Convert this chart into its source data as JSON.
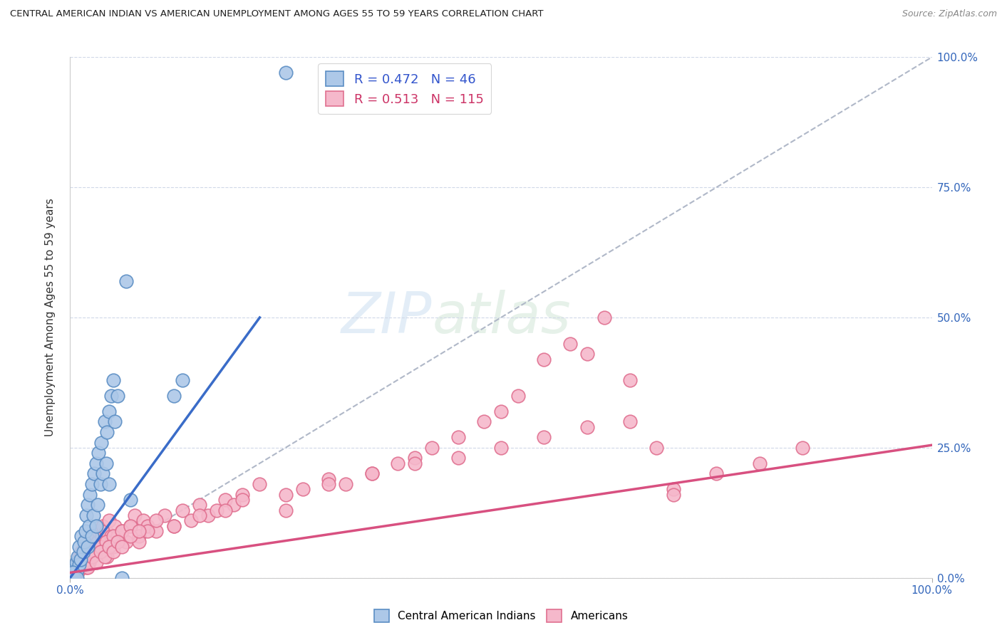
{
  "title": "CENTRAL AMERICAN INDIAN VS AMERICAN UNEMPLOYMENT AMONG AGES 55 TO 59 YEARS CORRELATION CHART",
  "source": "Source: ZipAtlas.com",
  "ylabel": "Unemployment Among Ages 55 to 59 years",
  "xlim": [
    0,
    1.0
  ],
  "ylim": [
    0,
    1.0
  ],
  "ytick_labels": [
    "0.0%",
    "25.0%",
    "50.0%",
    "75.0%",
    "100.0%"
  ],
  "ytick_vals": [
    0,
    0.25,
    0.5,
    0.75,
    1.0
  ],
  "blue_R": 0.472,
  "blue_N": 46,
  "pink_R": 0.513,
  "pink_N": 115,
  "blue_color": "#adc8e8",
  "pink_color": "#f5b8cb",
  "blue_edge": "#5b8ec4",
  "pink_edge": "#e07090",
  "blue_line_color": "#3a6cc8",
  "pink_line_color": "#d85080",
  "blue_label": "Central American Indians",
  "pink_label": "Americans",
  "watermark": "ZIPatlas",
  "background_color": "#ffffff",
  "blue_line_x": [
    0.0,
    0.22
  ],
  "blue_line_y": [
    0.0,
    0.5
  ],
  "pink_line_x": [
    0.0,
    1.0
  ],
  "pink_line_y": [
    0.01,
    0.255
  ],
  "blue_scatter_x": [
    0.004,
    0.006,
    0.007,
    0.008,
    0.009,
    0.01,
    0.01,
    0.012,
    0.013,
    0.015,
    0.016,
    0.018,
    0.019,
    0.02,
    0.02,
    0.022,
    0.023,
    0.025,
    0.025,
    0.027,
    0.028,
    0.03,
    0.03,
    0.032,
    0.033,
    0.035,
    0.036,
    0.038,
    0.04,
    0.042,
    0.043,
    0.045,
    0.045,
    0.048,
    0.05,
    0.052,
    0.055,
    0.06,
    0.065,
    0.07,
    0.12,
    0.13,
    0.25,
    0.003,
    0.005,
    0.008
  ],
  "blue_scatter_y": [
    0.02,
    0.01,
    0.03,
    0.015,
    0.04,
    0.025,
    0.06,
    0.035,
    0.08,
    0.05,
    0.07,
    0.09,
    0.12,
    0.06,
    0.14,
    0.1,
    0.16,
    0.08,
    0.18,
    0.12,
    0.2,
    0.1,
    0.22,
    0.14,
    0.24,
    0.18,
    0.26,
    0.2,
    0.3,
    0.22,
    0.28,
    0.32,
    0.18,
    0.35,
    0.38,
    0.3,
    0.35,
    0.0,
    0.57,
    0.15,
    0.35,
    0.38,
    0.97,
    0.01,
    0.0,
    0.0
  ],
  "pink_scatter_x": [
    0.003,
    0.005,
    0.007,
    0.008,
    0.009,
    0.01,
    0.012,
    0.013,
    0.015,
    0.016,
    0.018,
    0.019,
    0.02,
    0.022,
    0.023,
    0.025,
    0.027,
    0.028,
    0.03,
    0.032,
    0.033,
    0.035,
    0.037,
    0.038,
    0.04,
    0.042,
    0.043,
    0.045,
    0.048,
    0.05,
    0.052,
    0.055,
    0.06,
    0.065,
    0.07,
    0.075,
    0.08,
    0.085,
    0.09,
    0.1,
    0.11,
    0.12,
    0.13,
    0.14,
    0.15,
    0.16,
    0.17,
    0.18,
    0.19,
    0.2,
    0.22,
    0.25,
    0.27,
    0.3,
    0.32,
    0.35,
    0.38,
    0.4,
    0.42,
    0.45,
    0.48,
    0.5,
    0.52,
    0.55,
    0.58,
    0.6,
    0.62,
    0.65,
    0.68,
    0.7,
    0.008,
    0.012,
    0.018,
    0.022,
    0.028,
    0.035,
    0.042,
    0.05,
    0.06,
    0.07,
    0.08,
    0.09,
    0.1,
    0.12,
    0.15,
    0.18,
    0.2,
    0.25,
    0.3,
    0.35,
    0.4,
    0.45,
    0.5,
    0.55,
    0.6,
    0.65,
    0.7,
    0.75,
    0.8,
    0.85,
    0.0,
    0.005,
    0.01,
    0.015,
    0.02,
    0.025,
    0.03,
    0.035,
    0.04,
    0.045,
    0.05,
    0.055,
    0.06,
    0.07,
    0.08
  ],
  "pink_scatter_y": [
    0.01,
    0.02,
    0.015,
    0.03,
    0.01,
    0.04,
    0.02,
    0.05,
    0.03,
    0.04,
    0.06,
    0.02,
    0.05,
    0.03,
    0.07,
    0.04,
    0.06,
    0.08,
    0.05,
    0.07,
    0.09,
    0.06,
    0.08,
    0.1,
    0.07,
    0.09,
    0.04,
    0.11,
    0.08,
    0.06,
    0.1,
    0.08,
    0.09,
    0.07,
    0.1,
    0.12,
    0.08,
    0.11,
    0.1,
    0.09,
    0.12,
    0.1,
    0.13,
    0.11,
    0.14,
    0.12,
    0.13,
    0.15,
    0.14,
    0.16,
    0.18,
    0.13,
    0.17,
    0.19,
    0.18,
    0.2,
    0.22,
    0.23,
    0.25,
    0.27,
    0.3,
    0.32,
    0.35,
    0.42,
    0.45,
    0.43,
    0.5,
    0.38,
    0.25,
    0.17,
    0.01,
    0.02,
    0.03,
    0.04,
    0.05,
    0.06,
    0.07,
    0.08,
    0.09,
    0.1,
    0.07,
    0.09,
    0.11,
    0.1,
    0.12,
    0.13,
    0.15,
    0.16,
    0.18,
    0.2,
    0.22,
    0.23,
    0.25,
    0.27,
    0.29,
    0.3,
    0.16,
    0.2,
    0.22,
    0.25,
    0.0,
    0.01,
    0.02,
    0.03,
    0.02,
    0.04,
    0.03,
    0.05,
    0.04,
    0.06,
    0.05,
    0.07,
    0.06,
    0.08,
    0.09
  ]
}
